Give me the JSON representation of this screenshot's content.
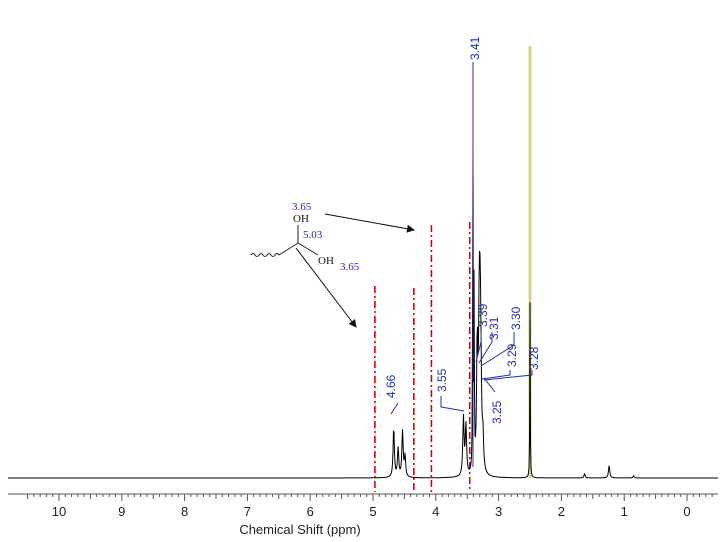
{
  "chart_data": {
    "type": "line",
    "xlabel": "Chemical Shift (ppm)",
    "ylabel": "",
    "title": "",
    "xlim": [
      10.6,
      -0.5
    ],
    "x_reversed": true,
    "x_ticks": [
      "10",
      "9",
      "8",
      "7",
      "6",
      "5",
      "4",
      "3",
      "2",
      "1",
      "0"
    ],
    "grid": false,
    "peak_labels": [
      "3.41",
      "4.66",
      "3.55",
      "3.39",
      "3.31",
      "3.30",
      "3.29",
      "3.28",
      "3.25"
    ],
    "peaks": [
      {
        "x": 4.67,
        "y": 0.12
      },
      {
        "x": 4.6,
        "y": 0.07
      },
      {
        "x": 4.53,
        "y": 0.11
      },
      {
        "x": 4.49,
        "y": 0.05
      },
      {
        "x": 3.56,
        "y": 0.14
      },
      {
        "x": 3.52,
        "y": 0.12
      },
      {
        "x": 3.41,
        "y": 1.0
      },
      {
        "x": 3.39,
        "y": 0.5
      },
      {
        "x": 3.34,
        "y": 0.3
      },
      {
        "x": 3.31,
        "y": 0.25
      },
      {
        "x": 3.3,
        "y": 0.22
      },
      {
        "x": 3.29,
        "y": 0.2
      },
      {
        "x": 3.28,
        "y": 0.12
      },
      {
        "x": 3.25,
        "y": 0.08
      },
      {
        "x": 2.5,
        "y": 0.42
      },
      {
        "x": 1.24,
        "y": 0.03
      },
      {
        "x": 1.63,
        "y": 0.01
      },
      {
        "x": 0.85,
        "y": 0.005
      }
    ],
    "dashed_markers_ppm": [
      4.97,
      4.35,
      4.07,
      3.46
    ],
    "highlight_line_ppm": 2.5,
    "colors": {
      "spectrum": "#000000",
      "labels": "#1f2fa8",
      "dashed": "#e00000",
      "highlight": "#d6d68a"
    }
  },
  "structure": {
    "oh_top": "OH",
    "oh_bottom": "OH",
    "shift_top": "3.65",
    "shift_center": "5.03",
    "shift_bottom": "3.65"
  }
}
